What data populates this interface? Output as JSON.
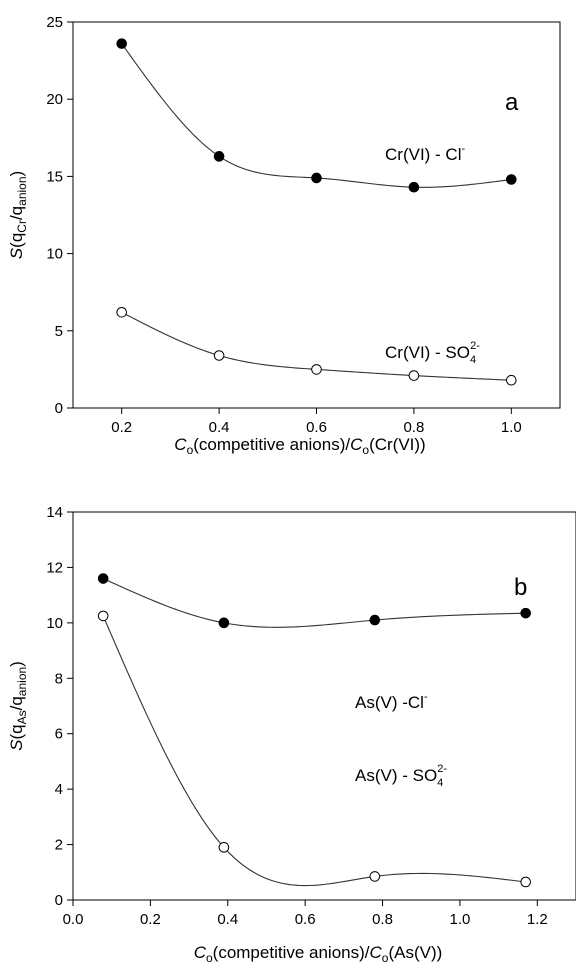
{
  "chart_data": [
    {
      "type": "scatter",
      "panel_label": "a",
      "xlabel": {
        "italic": "C",
        "sub": "o",
        "text": "(competitive anions)/",
        "italic2": "C",
        "sub2": "o",
        "text2": "(Cr(VI))"
      },
      "ylabel": {
        "italic": "S",
        "text_open": "(q",
        "sub1": "Cr",
        "slash": "/q",
        "sub2": "anion",
        "text_close": ")"
      },
      "xlim": [
        0.1,
        1.1
      ],
      "ylim": [
        0,
        25
      ],
      "xticks": [
        "0.2",
        "0.4",
        "0.6",
        "0.8",
        "1.0"
      ],
      "xtick_values": [
        0.2,
        0.4,
        0.6,
        0.8,
        1.0
      ],
      "yticks": [
        "0",
        "5",
        "10",
        "15",
        "20",
        "25"
      ],
      "ytick_values": [
        0,
        5,
        10,
        15,
        20,
        25
      ],
      "grid": false,
      "series": [
        {
          "label": {
            "main": "Cr(VI) - Cl",
            "sup": "-"
          },
          "marker": "filled",
          "x": [
            0.2,
            0.4,
            0.6,
            0.8,
            1.0
          ],
          "y": [
            23.6,
            16.3,
            14.9,
            14.3,
            14.8
          ]
        },
        {
          "label": {
            "main": "Cr(VI) - SO",
            "sub": "4",
            "sup": "2-"
          },
          "marker": "open",
          "x": [
            0.2,
            0.4,
            0.6,
            0.8,
            1.0
          ],
          "y": [
            6.2,
            3.4,
            2.5,
            2.1,
            1.8
          ]
        }
      ]
    },
    {
      "type": "scatter",
      "panel_label": "b",
      "xlabel": {
        "italic": "C",
        "sub": "o",
        "text": "(competitive anions)/",
        "italic2": "C",
        "sub2": "o",
        "text2": "(As(V))"
      },
      "ylabel": {
        "italic": "S",
        "text_open": "(q",
        "sub1": "As",
        "slash": "/q",
        "sub2": "anion",
        "text_close": ")"
      },
      "xlim": [
        0.0,
        1.3
      ],
      "ylim": [
        0,
        14
      ],
      "xticks": [
        "0.0",
        "0.2",
        "0.4",
        "0.6",
        "0.8",
        "1.0",
        "1.2"
      ],
      "xtick_values": [
        0.0,
        0.2,
        0.4,
        0.6,
        0.8,
        1.0,
        1.2
      ],
      "yticks": [
        "0",
        "2",
        "4",
        "6",
        "8",
        "10",
        "12",
        "14"
      ],
      "ytick_values": [
        0,
        2,
        4,
        6,
        8,
        10,
        12,
        14
      ],
      "grid": false,
      "series": [
        {
          "label": {
            "main": "As(V) -Cl",
            "sup": "-"
          },
          "marker": "filled",
          "x": [
            0.078,
            0.39,
            0.78,
            1.17
          ],
          "y": [
            11.6,
            10.0,
            10.1,
            10.35
          ]
        },
        {
          "label": {
            "main": "As(V) - SO",
            "sub": "4",
            "sup": "2-"
          },
          "marker": "open",
          "x": [
            0.078,
            0.39,
            0.78,
            1.17
          ],
          "y": [
            10.25,
            1.9,
            0.85,
            0.65
          ]
        }
      ]
    }
  ]
}
